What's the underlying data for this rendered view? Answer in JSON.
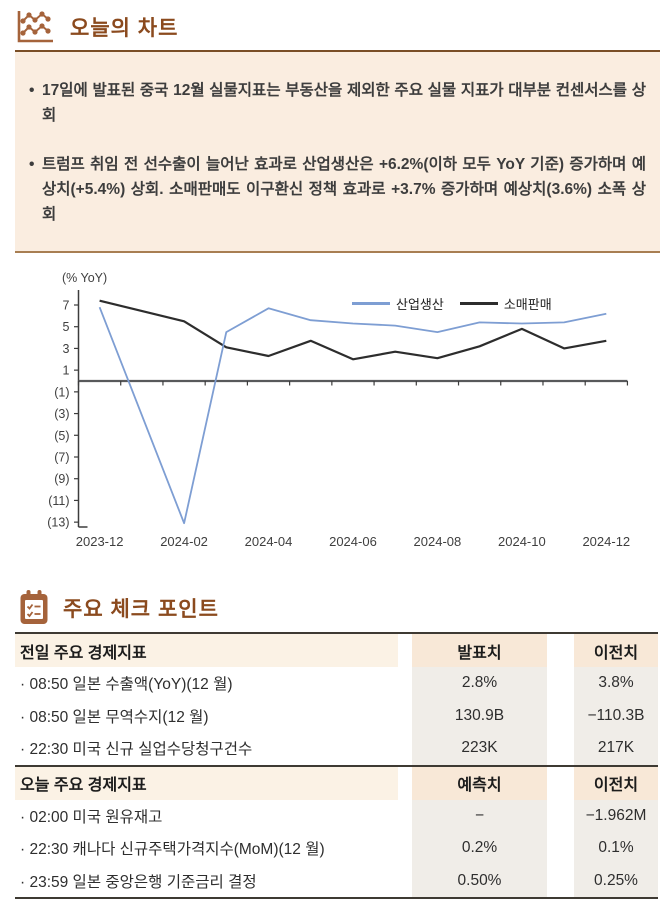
{
  "colors": {
    "accent_text": "#8B4A1E",
    "icon_brown": "#A5633B",
    "box_bg": "#FAEDE0",
    "box_border_top": "#7A4E26",
    "box_border_bottom": "#A87E52",
    "table_border": "#3E3A33",
    "header_label_bg": "#FBF2E5",
    "header_value_bg": "#F8E8D7",
    "row_value_bg": "#F0EDE8"
  },
  "section_chart": {
    "title": "오늘의 차트",
    "bullet_glyph": "•",
    "bullets": [
      "17일에 발표된 중국 12월 실물지표는 부동산을 제외한 주요 실물 지표가 대부분 컨센서스를 상회",
      "트럼프 취임 전 선수출이 늘어난 효과로 산업생산은 +6.2%(이하 모두 YoY 기준) 증가하며 예상치(+5.4%) 상회. 소매판매도 이구환신 정책 효과로 +3.7% 증가하며 예상치(3.6%) 소폭 상회"
    ]
  },
  "chart_data": {
    "type": "line",
    "unit_label": "(% YoY)",
    "categories": [
      "2023-12",
      "2024-01",
      "2024-02",
      "2024-03",
      "2024-04",
      "2024-05",
      "2024-06",
      "2024-07",
      "2024-08",
      "2024-09",
      "2024-10",
      "2024-11",
      "2024-12"
    ],
    "x_tick_labels": [
      "2023-12",
      "2024-02",
      "2024-04",
      "2024-06",
      "2024-08",
      "2024-10",
      "2024-12"
    ],
    "series": [
      {
        "name": "산업생산",
        "color": "#7E9ED3",
        "values": [
          6.8,
          null,
          -13.1,
          4.5,
          6.7,
          5.6,
          5.3,
          5.1,
          4.5,
          5.4,
          5.3,
          5.4,
          6.2
        ]
      },
      {
        "name": "소매판매",
        "color": "#2D2D2D",
        "values": [
          7.4,
          null,
          5.5,
          3.1,
          2.3,
          3.7,
          2.0,
          2.7,
          2.1,
          3.2,
          4.8,
          3.0,
          3.7
        ]
      }
    ],
    "y_ticks": [
      7,
      5,
      3,
      1,
      -1,
      -3,
      -5,
      -7,
      -9,
      -11,
      -13
    ],
    "ylim": [
      -13.5,
      8.4
    ],
    "negative_format": "parentheses",
    "grid": false,
    "legend_position": "top-center-right"
  },
  "section_table": {
    "title": "주요 체크 포인트",
    "groups": [
      {
        "header": {
          "label": "전일 주요 경제지표",
          "col2": "발표치",
          "col3": "이전치"
        },
        "rows": [
          {
            "label": "· 08:50 일본 수출액(YoY)(12 월)",
            "col2": "2.8%",
            "col3": "3.8%"
          },
          {
            "label": "· 08:50 일본 무역수지(12 월)",
            "col2": "130.9B",
            "col3": "−110.3B"
          },
          {
            "label": "· 22:30 미국 신규 실업수당청구건수",
            "col2": "223K",
            "col3": "217K"
          }
        ]
      },
      {
        "header": {
          "label": "오늘 주요 경제지표",
          "col2": "예측치",
          "col3": "이전치"
        },
        "rows": [
          {
            "label": "· 02:00 미국 원유재고",
            "col2": "−",
            "col3": "−1.962M"
          },
          {
            "label": "· 22:30 캐나다 신규주택가격지수(MoM)(12 월)",
            "col2": "0.2%",
            "col3": "0.1%"
          },
          {
            "label": "· 23:59 일본 중앙은행 기준금리 결정",
            "col2": "0.50%",
            "col3": "0.25%"
          }
        ]
      }
    ]
  }
}
